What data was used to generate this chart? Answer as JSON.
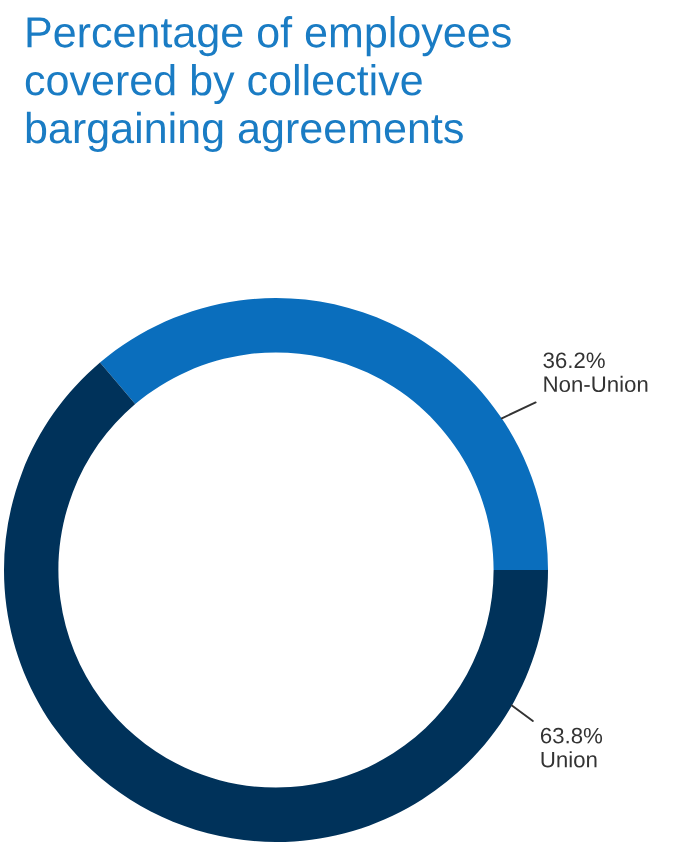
{
  "chart_data": {
    "type": "donut",
    "title": "Percentage of employees\ncovered by collective\nbargaining agreements",
    "categories": [
      "Non-Union",
      "Union"
    ],
    "values": [
      36.2,
      63.8
    ],
    "colors": [
      "#0a6ebd",
      "#00325a"
    ],
    "value_labels": [
      "36.2%",
      "63.8%"
    ],
    "legend": false
  }
}
